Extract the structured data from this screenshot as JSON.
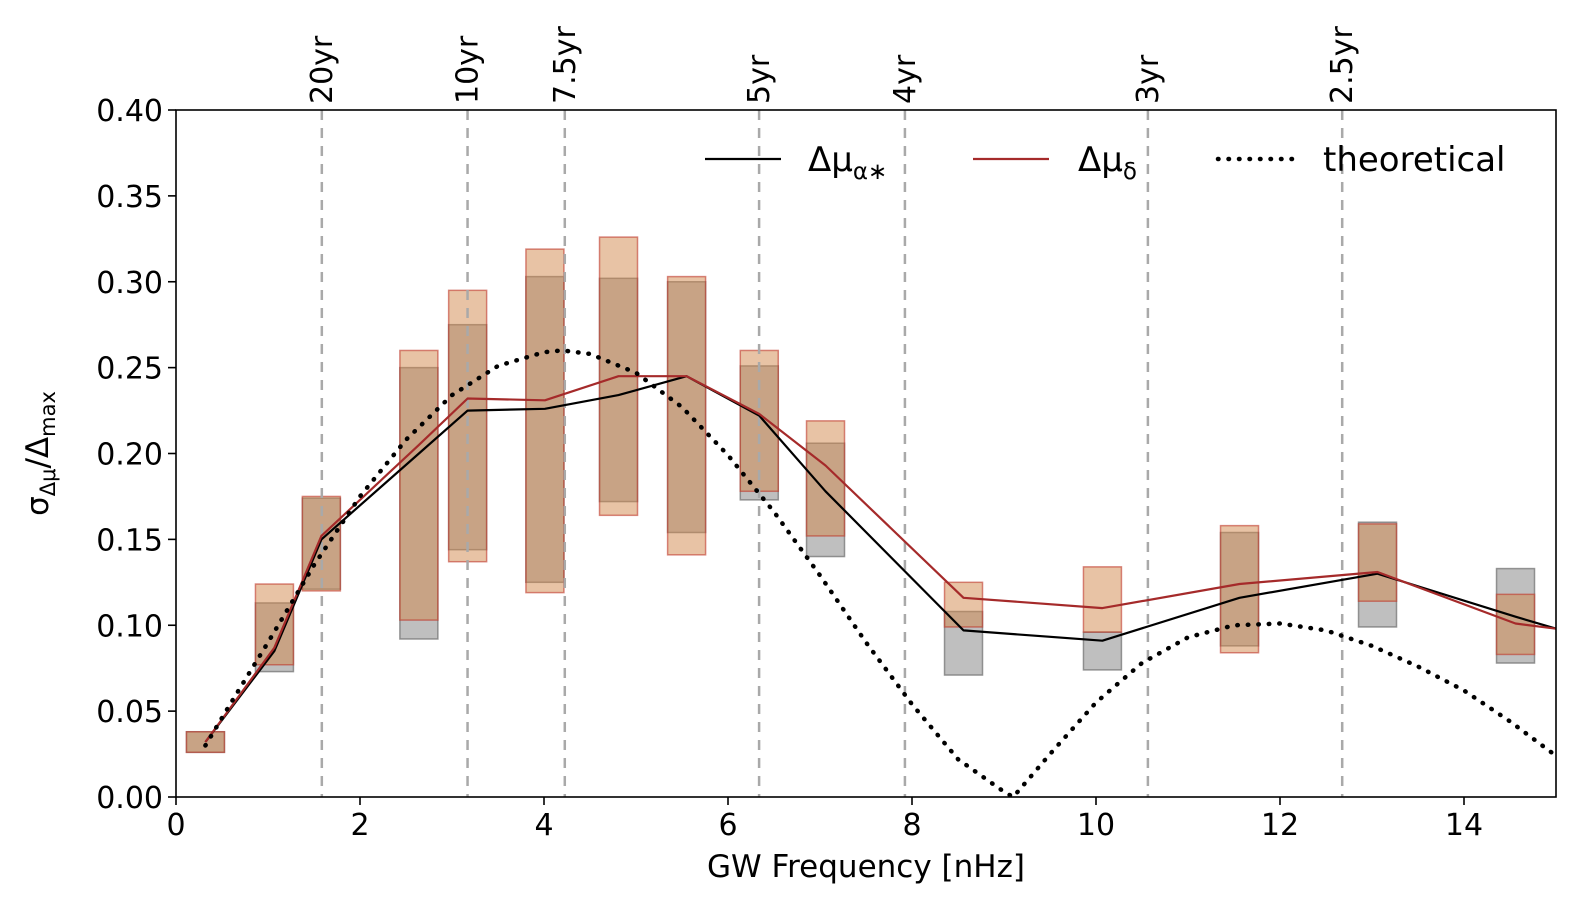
{
  "chart_data": {
    "type": "line",
    "title": "",
    "xlabel": "GW Frequency [nHz]",
    "ylabel_parts": {
      "base": "σ",
      "sub": "Δμ",
      "slash": "/Δ",
      "sub2": "max"
    },
    "xlim": [
      0,
      15
    ],
    "ylim": [
      0,
      0.4
    ],
    "x_ticks": [
      0,
      2,
      4,
      6,
      8,
      10,
      12,
      14
    ],
    "x_tick_labels": [
      "0",
      "2",
      "4",
      "6",
      "8",
      "10",
      "12",
      "14"
    ],
    "y_ticks": [
      0,
      0.05,
      0.1,
      0.15,
      0.2,
      0.25,
      0.3,
      0.35,
      0.4
    ],
    "y_tick_labels": [
      "0.00",
      "0.05",
      "0.10",
      "0.15",
      "0.20",
      "0.25",
      "0.30",
      "0.35",
      "0.40"
    ],
    "period_lines": [
      {
        "label": "20yr",
        "freq": 1.585
      },
      {
        "label": "10yr",
        "freq": 3.169
      },
      {
        "label": "7.5yr",
        "freq": 4.226
      },
      {
        "label": "5yr",
        "freq": 6.338
      },
      {
        "label": "4yr",
        "freq": 7.923
      },
      {
        "label": "3yr",
        "freq": 10.564
      },
      {
        "label": "2.5yr",
        "freq": 12.676
      }
    ],
    "legend": {
      "position": "top-right",
      "entries": [
        {
          "key": "ra",
          "label": "Δμ",
          "sub": "α∗",
          "color": "#000000",
          "style": "solid"
        },
        {
          "key": "dec",
          "label": "Δμ",
          "sub": "δ",
          "color": "#a52a2a",
          "style": "solid"
        },
        {
          "key": "theory",
          "label": "theoretical",
          "color": "#000000",
          "style": "dotted"
        }
      ]
    },
    "series": [
      {
        "name": "Δμα∗",
        "color": "#000000",
        "x": [
          0.32,
          1.07,
          1.58,
          2.64,
          3.17,
          4.01,
          4.81,
          5.55,
          6.34,
          7.06,
          8.56,
          10.07,
          11.56,
          13.06,
          14.56,
          15.0
        ],
        "y": [
          0.032,
          0.085,
          0.15,
          0.2,
          0.225,
          0.226,
          0.234,
          0.245,
          0.222,
          0.178,
          0.097,
          0.091,
          0.116,
          0.13,
          0.105,
          0.098
        ]
      },
      {
        "name": "Δμδ",
        "color": "#a52a2a",
        "x": [
          0.32,
          1.07,
          1.58,
          2.64,
          3.17,
          4.01,
          4.81,
          5.55,
          6.34,
          7.06,
          8.56,
          10.07,
          11.56,
          13.06,
          14.56,
          15.0
        ],
        "y": [
          0.032,
          0.087,
          0.152,
          0.205,
          0.232,
          0.231,
          0.245,
          0.245,
          0.223,
          0.193,
          0.116,
          0.11,
          0.124,
          0.131,
          0.101,
          0.098
        ]
      },
      {
        "name": "theoretical",
        "color": "#000000",
        "x": [
          0.32,
          0.6,
          1.0,
          1.5,
          2.0,
          2.5,
          3.0,
          3.5,
          4.0,
          4.2,
          4.5,
          5.0,
          5.5,
          6.0,
          6.5,
          7.0,
          7.5,
          8.0,
          8.5,
          9.0,
          9.1,
          9.5,
          10.0,
          10.5,
          11.0,
          11.5,
          12.0,
          12.5,
          13.0,
          13.5,
          14.0,
          14.5,
          15.0
        ],
        "y": [
          0.03,
          0.055,
          0.09,
          0.135,
          0.175,
          0.208,
          0.234,
          0.251,
          0.259,
          0.26,
          0.258,
          0.247,
          0.227,
          0.199,
          0.166,
          0.129,
          0.09,
          0.054,
          0.022,
          0.003,
          0.0,
          0.025,
          0.055,
          0.078,
          0.093,
          0.1,
          0.101,
          0.097,
          0.088,
          0.076,
          0.062,
          0.044,
          0.024
        ]
      }
    ],
    "error_boxes": [
      {
        "x": 0.32,
        "ra": [
          0.026,
          0.038
        ],
        "dec": [
          0.026,
          0.038
        ]
      },
      {
        "x": 1.07,
        "ra": [
          0.073,
          0.113
        ],
        "dec": [
          0.077,
          0.124
        ]
      },
      {
        "x": 1.58,
        "ra": [
          0.121,
          0.174
        ],
        "dec": [
          0.12,
          0.175
        ]
      },
      {
        "x": 2.64,
        "ra": [
          0.092,
          0.25
        ],
        "dec": [
          0.103,
          0.26
        ]
      },
      {
        "x": 3.17,
        "ra": [
          0.144,
          0.275
        ],
        "dec": [
          0.137,
          0.295
        ]
      },
      {
        "x": 4.01,
        "ra": [
          0.125,
          0.303
        ],
        "dec": [
          0.119,
          0.319
        ]
      },
      {
        "x": 4.81,
        "ra": [
          0.172,
          0.302
        ],
        "dec": [
          0.164,
          0.326
        ]
      },
      {
        "x": 5.55,
        "ra": [
          0.154,
          0.3
        ],
        "dec": [
          0.141,
          0.303
        ]
      },
      {
        "x": 6.34,
        "ra": [
          0.173,
          0.251
        ],
        "dec": [
          0.178,
          0.26
        ]
      },
      {
        "x": 7.06,
        "ra": [
          0.14,
          0.206
        ],
        "dec": [
          0.152,
          0.219
        ]
      },
      {
        "x": 8.56,
        "ra": [
          0.071,
          0.108
        ],
        "dec": [
          0.099,
          0.125
        ]
      },
      {
        "x": 10.07,
        "ra": [
          0.074,
          0.096
        ],
        "dec": [
          0.096,
          0.134
        ]
      },
      {
        "x": 11.56,
        "ra": [
          0.088,
          0.154
        ],
        "dec": [
          0.084,
          0.158
        ]
      },
      {
        "x": 13.06,
        "ra": [
          0.099,
          0.16
        ],
        "dec": [
          0.114,
          0.159
        ]
      },
      {
        "x": 14.56,
        "ra": [
          0.078,
          0.133
        ],
        "dec": [
          0.083,
          0.118
        ]
      }
    ],
    "colors": {
      "ra_box_fill": "#808080",
      "ra_box_edge": "#6e6e6e",
      "dec_box_fill": "#d2874b",
      "dec_box_edge": "#c0392b",
      "period_line": "#a9a9a9"
    }
  }
}
